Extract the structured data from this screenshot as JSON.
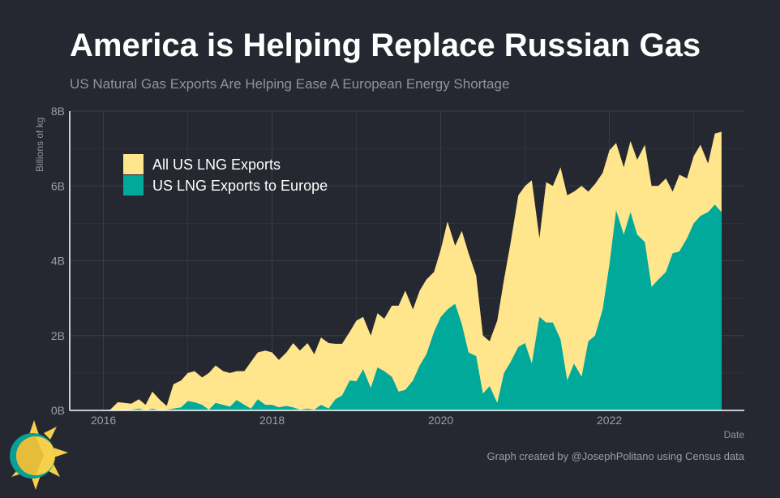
{
  "title": "America is Helping Replace Russian Gas",
  "subtitle": "US Natural Gas Exports Are Helping Ease A European Energy Shortage",
  "caption": "Graph created by @JosephPolitano using Census data",
  "colors": {
    "background": "#252830",
    "all_exports": "#ffe68c",
    "europe_exports": "#00a99a",
    "grid": "#3a3e48",
    "axis": "#ffffff",
    "logo_sun": "#f7d04a",
    "logo_ring": "#0a9e94"
  },
  "chart_data": {
    "type": "area",
    "xlabel": "Date",
    "ylabel": "Billions of kg",
    "xlim": [
      2015.6,
      2023.6
    ],
    "ylim": [
      0,
      8
    ],
    "x_ticks": [
      {
        "value": 2016,
        "label": "2016"
      },
      {
        "value": 2018,
        "label": "2018"
      },
      {
        "value": 2020,
        "label": "2020"
      },
      {
        "value": 2022,
        "label": "2022"
      }
    ],
    "y_ticks": [
      {
        "value": 0,
        "label": "0B"
      },
      {
        "value": 2,
        "label": "2B"
      },
      {
        "value": 4,
        "label": "4B"
      },
      {
        "value": 6,
        "label": "6B"
      },
      {
        "value": 8,
        "label": "8B"
      }
    ],
    "grid": true,
    "legend_position": "top-left",
    "series": [
      {
        "name": "All US LNG Exports",
        "color": "#ffe68c",
        "points": [
          [
            2016.0,
            0.0
          ],
          [
            2016.08,
            0.02
          ],
          [
            2016.17,
            0.22
          ],
          [
            2016.25,
            0.2
          ],
          [
            2016.33,
            0.18
          ],
          [
            2016.42,
            0.3
          ],
          [
            2016.5,
            0.15
          ],
          [
            2016.58,
            0.5
          ],
          [
            2016.67,
            0.28
          ],
          [
            2016.75,
            0.12
          ],
          [
            2016.83,
            0.7
          ],
          [
            2016.92,
            0.8
          ],
          [
            2017.0,
            1.0
          ],
          [
            2017.08,
            1.05
          ],
          [
            2017.17,
            0.88
          ],
          [
            2017.25,
            1.0
          ],
          [
            2017.33,
            1.2
          ],
          [
            2017.42,
            1.05
          ],
          [
            2017.5,
            1.0
          ],
          [
            2017.58,
            1.05
          ],
          [
            2017.67,
            1.05
          ],
          [
            2017.75,
            1.3
          ],
          [
            2017.83,
            1.55
          ],
          [
            2017.92,
            1.6
          ],
          [
            2018.0,
            1.55
          ],
          [
            2018.08,
            1.35
          ],
          [
            2018.17,
            1.55
          ],
          [
            2018.25,
            1.8
          ],
          [
            2018.33,
            1.6
          ],
          [
            2018.42,
            1.8
          ],
          [
            2018.5,
            1.5
          ],
          [
            2018.58,
            1.95
          ],
          [
            2018.67,
            1.8
          ],
          [
            2018.75,
            1.78
          ],
          [
            2018.83,
            1.78
          ],
          [
            2018.92,
            2.1
          ],
          [
            2019.0,
            2.4
          ],
          [
            2019.08,
            2.5
          ],
          [
            2019.17,
            2.0
          ],
          [
            2019.25,
            2.6
          ],
          [
            2019.33,
            2.45
          ],
          [
            2019.42,
            2.8
          ],
          [
            2019.5,
            2.8
          ],
          [
            2019.58,
            3.2
          ],
          [
            2019.67,
            2.7
          ],
          [
            2019.75,
            3.2
          ],
          [
            2019.83,
            3.5
          ],
          [
            2019.92,
            3.7
          ],
          [
            2020.0,
            4.3
          ],
          [
            2020.08,
            5.05
          ],
          [
            2020.17,
            4.4
          ],
          [
            2020.25,
            4.8
          ],
          [
            2020.33,
            4.2
          ],
          [
            2020.42,
            3.6
          ],
          [
            2020.5,
            2.0
          ],
          [
            2020.58,
            1.85
          ],
          [
            2020.67,
            2.4
          ],
          [
            2020.75,
            3.5
          ],
          [
            2020.83,
            4.5
          ],
          [
            2020.92,
            5.75
          ],
          [
            2021.0,
            6.0
          ],
          [
            2021.08,
            6.15
          ],
          [
            2021.17,
            4.6
          ],
          [
            2021.25,
            6.1
          ],
          [
            2021.33,
            6.0
          ],
          [
            2021.42,
            6.5
          ],
          [
            2021.5,
            5.75
          ],
          [
            2021.58,
            5.85
          ],
          [
            2021.67,
            6.0
          ],
          [
            2021.75,
            5.85
          ],
          [
            2021.83,
            6.05
          ],
          [
            2021.92,
            6.35
          ],
          [
            2022.0,
            6.95
          ],
          [
            2022.08,
            7.15
          ],
          [
            2022.17,
            6.5
          ],
          [
            2022.25,
            7.2
          ],
          [
            2022.33,
            6.7
          ],
          [
            2022.42,
            7.1
          ],
          [
            2022.5,
            6.0
          ],
          [
            2022.58,
            6.0
          ],
          [
            2022.67,
            6.2
          ],
          [
            2022.75,
            5.85
          ],
          [
            2022.83,
            6.3
          ],
          [
            2022.92,
            6.2
          ],
          [
            2023.0,
            6.8
          ],
          [
            2023.08,
            7.1
          ],
          [
            2023.17,
            6.6
          ],
          [
            2023.25,
            7.4
          ],
          [
            2023.33,
            7.45
          ]
        ]
      },
      {
        "name": "US LNG Exports to Europe",
        "color": "#00a99a",
        "points": [
          [
            2016.0,
            0.0
          ],
          [
            2016.08,
            0.0
          ],
          [
            2016.17,
            0.02
          ],
          [
            2016.25,
            0.0
          ],
          [
            2016.33,
            0.02
          ],
          [
            2016.42,
            0.05
          ],
          [
            2016.5,
            0.0
          ],
          [
            2016.58,
            0.05
          ],
          [
            2016.67,
            0.0
          ],
          [
            2016.75,
            0.02
          ],
          [
            2016.83,
            0.05
          ],
          [
            2016.92,
            0.08
          ],
          [
            2017.0,
            0.25
          ],
          [
            2017.08,
            0.22
          ],
          [
            2017.17,
            0.15
          ],
          [
            2017.25,
            0.02
          ],
          [
            2017.33,
            0.2
          ],
          [
            2017.42,
            0.15
          ],
          [
            2017.5,
            0.1
          ],
          [
            2017.58,
            0.28
          ],
          [
            2017.67,
            0.15
          ],
          [
            2017.75,
            0.05
          ],
          [
            2017.83,
            0.3
          ],
          [
            2017.92,
            0.15
          ],
          [
            2018.0,
            0.15
          ],
          [
            2018.08,
            0.08
          ],
          [
            2018.17,
            0.12
          ],
          [
            2018.25,
            0.08
          ],
          [
            2018.33,
            0.02
          ],
          [
            2018.42,
            0.05
          ],
          [
            2018.5,
            0.02
          ],
          [
            2018.58,
            0.15
          ],
          [
            2018.67,
            0.05
          ],
          [
            2018.75,
            0.3
          ],
          [
            2018.83,
            0.4
          ],
          [
            2018.92,
            0.8
          ],
          [
            2019.0,
            0.78
          ],
          [
            2019.08,
            1.1
          ],
          [
            2019.17,
            0.6
          ],
          [
            2019.25,
            1.15
          ],
          [
            2019.33,
            1.05
          ],
          [
            2019.42,
            0.9
          ],
          [
            2019.5,
            0.5
          ],
          [
            2019.58,
            0.55
          ],
          [
            2019.67,
            0.8
          ],
          [
            2019.75,
            1.2
          ],
          [
            2019.83,
            1.5
          ],
          [
            2019.92,
            2.1
          ],
          [
            2020.0,
            2.5
          ],
          [
            2020.08,
            2.7
          ],
          [
            2020.17,
            2.85
          ],
          [
            2020.25,
            2.3
          ],
          [
            2020.33,
            1.55
          ],
          [
            2020.42,
            1.45
          ],
          [
            2020.5,
            0.45
          ],
          [
            2020.58,
            0.65
          ],
          [
            2020.67,
            0.2
          ],
          [
            2020.75,
            1.0
          ],
          [
            2020.83,
            1.3
          ],
          [
            2020.92,
            1.7
          ],
          [
            2021.0,
            1.8
          ],
          [
            2021.08,
            1.25
          ],
          [
            2021.17,
            2.5
          ],
          [
            2021.25,
            2.35
          ],
          [
            2021.33,
            2.35
          ],
          [
            2021.42,
            1.9
          ],
          [
            2021.5,
            0.8
          ],
          [
            2021.58,
            1.25
          ],
          [
            2021.67,
            0.9
          ],
          [
            2021.75,
            1.85
          ],
          [
            2021.83,
            2.0
          ],
          [
            2021.92,
            2.7
          ],
          [
            2022.0,
            3.9
          ],
          [
            2022.08,
            5.35
          ],
          [
            2022.17,
            4.7
          ],
          [
            2022.25,
            5.3
          ],
          [
            2022.33,
            4.7
          ],
          [
            2022.42,
            4.5
          ],
          [
            2022.5,
            3.3
          ],
          [
            2022.58,
            3.5
          ],
          [
            2022.67,
            3.7
          ],
          [
            2022.75,
            4.2
          ],
          [
            2022.83,
            4.25
          ],
          [
            2022.92,
            4.6
          ],
          [
            2023.0,
            5.0
          ],
          [
            2023.08,
            5.2
          ],
          [
            2023.17,
            5.3
          ],
          [
            2023.25,
            5.5
          ],
          [
            2023.33,
            5.3
          ]
        ]
      }
    ]
  }
}
